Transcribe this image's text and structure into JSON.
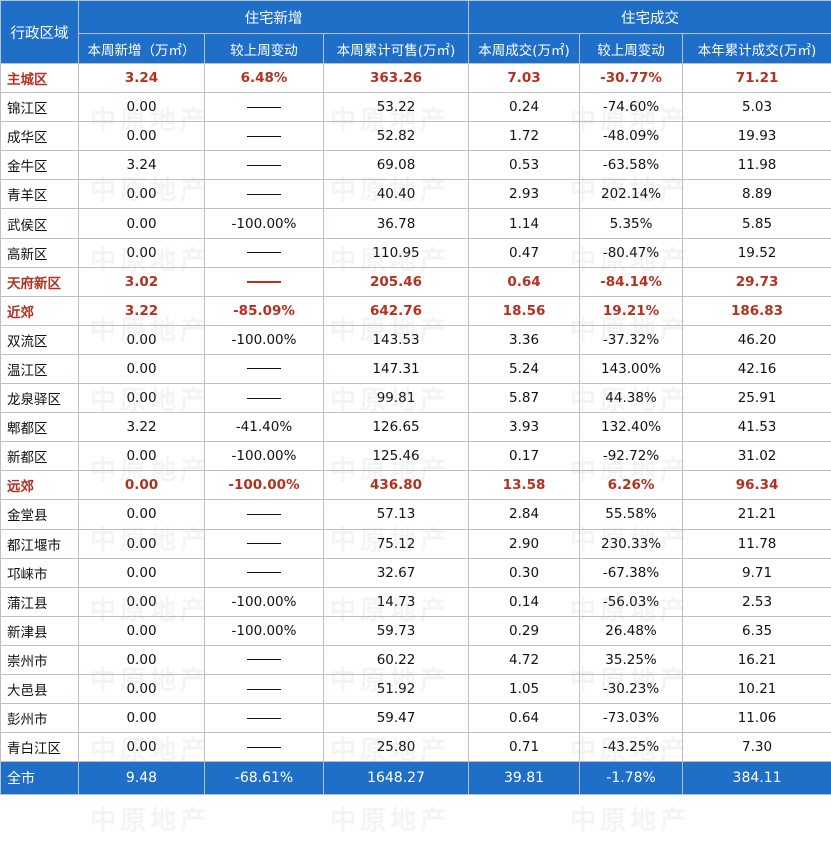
{
  "headers": {
    "region": "行政区域",
    "group_new": "住宅新增",
    "group_deal": "住宅成交",
    "cols": [
      "本周新增（万㎡）",
      "较上周变动",
      "本周累计可售(万㎡)",
      "本周成交(万㎡)",
      "较上周变动",
      "本年累计成交(万㎡)"
    ]
  },
  "rows": [
    {
      "name": "主城区",
      "sub": true,
      "new": "3.24",
      "chg": "6.48%",
      "avail": "363.26",
      "deal": "7.03",
      "dchg": "-30.77%",
      "ytd": "71.21"
    },
    {
      "name": "锦江区",
      "sub": false,
      "new": "0.00",
      "chg": "",
      "avail": "53.22",
      "deal": "0.24",
      "dchg": "-74.60%",
      "ytd": "5.03"
    },
    {
      "name": "成华区",
      "sub": false,
      "new": "0.00",
      "chg": "",
      "avail": "52.82",
      "deal": "1.72",
      "dchg": "-48.09%",
      "ytd": "19.93"
    },
    {
      "name": "金牛区",
      "sub": false,
      "new": "3.24",
      "chg": "",
      "avail": "69.08",
      "deal": "0.53",
      "dchg": "-63.58%",
      "ytd": "11.98"
    },
    {
      "name": "青羊区",
      "sub": false,
      "new": "0.00",
      "chg": "",
      "avail": "40.40",
      "deal": "2.93",
      "dchg": "202.14%",
      "ytd": "8.89"
    },
    {
      "name": "武侯区",
      "sub": false,
      "new": "0.00",
      "chg": "-100.00%",
      "avail": "36.78",
      "deal": "1.14",
      "dchg": "5.35%",
      "ytd": "5.85"
    },
    {
      "name": "高新区",
      "sub": false,
      "new": "0.00",
      "chg": "",
      "avail": "110.95",
      "deal": "0.47",
      "dchg": "-80.47%",
      "ytd": "19.52"
    },
    {
      "name": "天府新区",
      "sub": true,
      "new": "3.02",
      "chg": "",
      "avail": "205.46",
      "deal": "0.64",
      "dchg": "-84.14%",
      "ytd": "29.73"
    },
    {
      "name": "近郊",
      "sub": true,
      "new": "3.22",
      "chg": "-85.09%",
      "avail": "642.76",
      "deal": "18.56",
      "dchg": "19.21%",
      "ytd": "186.83"
    },
    {
      "name": "双流区",
      "sub": false,
      "new": "0.00",
      "chg": "-100.00%",
      "avail": "143.53",
      "deal": "3.36",
      "dchg": "-37.32%",
      "ytd": "46.20"
    },
    {
      "name": "温江区",
      "sub": false,
      "new": "0.00",
      "chg": "",
      "avail": "147.31",
      "deal": "5.24",
      "dchg": "143.00%",
      "ytd": "42.16"
    },
    {
      "name": "龙泉驿区",
      "sub": false,
      "new": "0.00",
      "chg": "",
      "avail": "99.81",
      "deal": "5.87",
      "dchg": "44.38%",
      "ytd": "25.91"
    },
    {
      "name": "郫都区",
      "sub": false,
      "new": "3.22",
      "chg": "-41.40%",
      "avail": "126.65",
      "deal": "3.93",
      "dchg": "132.40%",
      "ytd": "41.53"
    },
    {
      "name": "新都区",
      "sub": false,
      "new": "0.00",
      "chg": "-100.00%",
      "avail": "125.46",
      "deal": "0.17",
      "dchg": "-92.72%",
      "ytd": "31.02"
    },
    {
      "name": "远郊",
      "sub": true,
      "new": "0.00",
      "chg": "-100.00%",
      "avail": "436.80",
      "deal": "13.58",
      "dchg": "6.26%",
      "ytd": "96.34"
    },
    {
      "name": "金堂县",
      "sub": false,
      "new": "0.00",
      "chg": "",
      "avail": "57.13",
      "deal": "2.84",
      "dchg": "55.58%",
      "ytd": "21.21"
    },
    {
      "name": "都江堰市",
      "sub": false,
      "new": "0.00",
      "chg": "",
      "avail": "75.12",
      "deal": "2.90",
      "dchg": "230.33%",
      "ytd": "11.78"
    },
    {
      "name": "邛崃市",
      "sub": false,
      "new": "0.00",
      "chg": "",
      "avail": "32.67",
      "deal": "0.30",
      "dchg": "-67.38%",
      "ytd": "9.71"
    },
    {
      "name": "蒲江县",
      "sub": false,
      "new": "0.00",
      "chg": "-100.00%",
      "avail": "14.73",
      "deal": "0.14",
      "dchg": "-56.03%",
      "ytd": "2.53"
    },
    {
      "name": "新津县",
      "sub": false,
      "new": "0.00",
      "chg": "-100.00%",
      "avail": "59.73",
      "deal": "0.29",
      "dchg": "26.48%",
      "ytd": "6.35"
    },
    {
      "name": "崇州市",
      "sub": false,
      "new": "0.00",
      "chg": "",
      "avail": "60.22",
      "deal": "4.72",
      "dchg": "35.25%",
      "ytd": "16.21"
    },
    {
      "name": "大邑县",
      "sub": false,
      "new": "0.00",
      "chg": "",
      "avail": "51.92",
      "deal": "1.05",
      "dchg": "-30.23%",
      "ytd": "10.21"
    },
    {
      "name": "彭州市",
      "sub": false,
      "new": "0.00",
      "chg": "",
      "avail": "59.47",
      "deal": "0.64",
      "dchg": "-73.03%",
      "ytd": "11.06"
    },
    {
      "name": "青白江区",
      "sub": false,
      "new": "0.00",
      "chg": "",
      "avail": "25.80",
      "deal": "0.71",
      "dchg": "-43.25%",
      "ytd": "7.30"
    }
  ],
  "total": {
    "name": "全市",
    "new": "9.48",
    "chg": "-68.61%",
    "avail": "1648.27",
    "deal": "39.81",
    "dchg": "-1.78%",
    "ytd": "384.11"
  },
  "watermark": "中原地产",
  "colors": {
    "header_bg": "#1f6fc9",
    "subtotal_text": "#b4311f",
    "grid": "#b9c0c8"
  }
}
